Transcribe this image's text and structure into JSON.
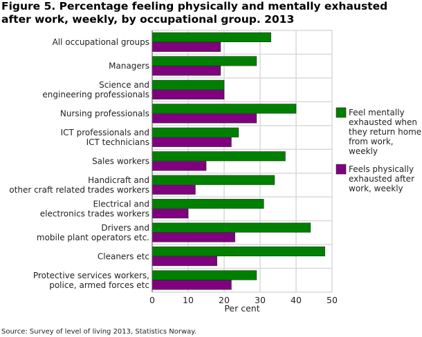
{
  "chart_data": {
    "type": "bar",
    "orientation": "horizontal",
    "title": "Figure 5. Percentage feeling physically and mentally exhausted  after work, weekly, by occupational group. 2013",
    "xlabel": "Per cent",
    "ylabel": "",
    "xlim": [
      0,
      50
    ],
    "xticks": [
      0,
      10,
      20,
      30,
      40,
      50
    ],
    "grid": true,
    "legend_position": "right",
    "categories": [
      [
        "All occupational groups"
      ],
      [
        "Managers"
      ],
      [
        "Science and",
        "engineering professionals"
      ],
      [
        "Nursing professionals"
      ],
      [
        "ICT professionals and",
        "ICT technicians"
      ],
      [
        "Sales workers"
      ],
      [
        "Handicraft and",
        "other craft related trades workers"
      ],
      [
        "Electrical and",
        "electronics trades workers"
      ],
      [
        "Drivers and",
        "mobile plant operators etc."
      ],
      [
        "Cleaners etc"
      ],
      [
        "Protective services workers,",
        "police, armed forces etc"
      ]
    ],
    "series": [
      {
        "name": [
          "Feel mentally",
          "exhausted when",
          "they return home",
          "from work,",
          "weekly"
        ],
        "color": "#008000",
        "values": [
          33,
          29,
          20,
          40,
          24,
          37,
          34,
          31,
          44,
          48,
          29
        ]
      },
      {
        "name": [
          "Feels physically",
          "exhausted after",
          "work, weekly"
        ],
        "color": "#800080",
        "values": [
          19,
          19,
          20,
          29,
          22,
          15,
          12,
          10,
          23,
          18,
          22
        ]
      }
    ]
  },
  "source": "Source: Survey of level of living 2013, Statistics Norway."
}
